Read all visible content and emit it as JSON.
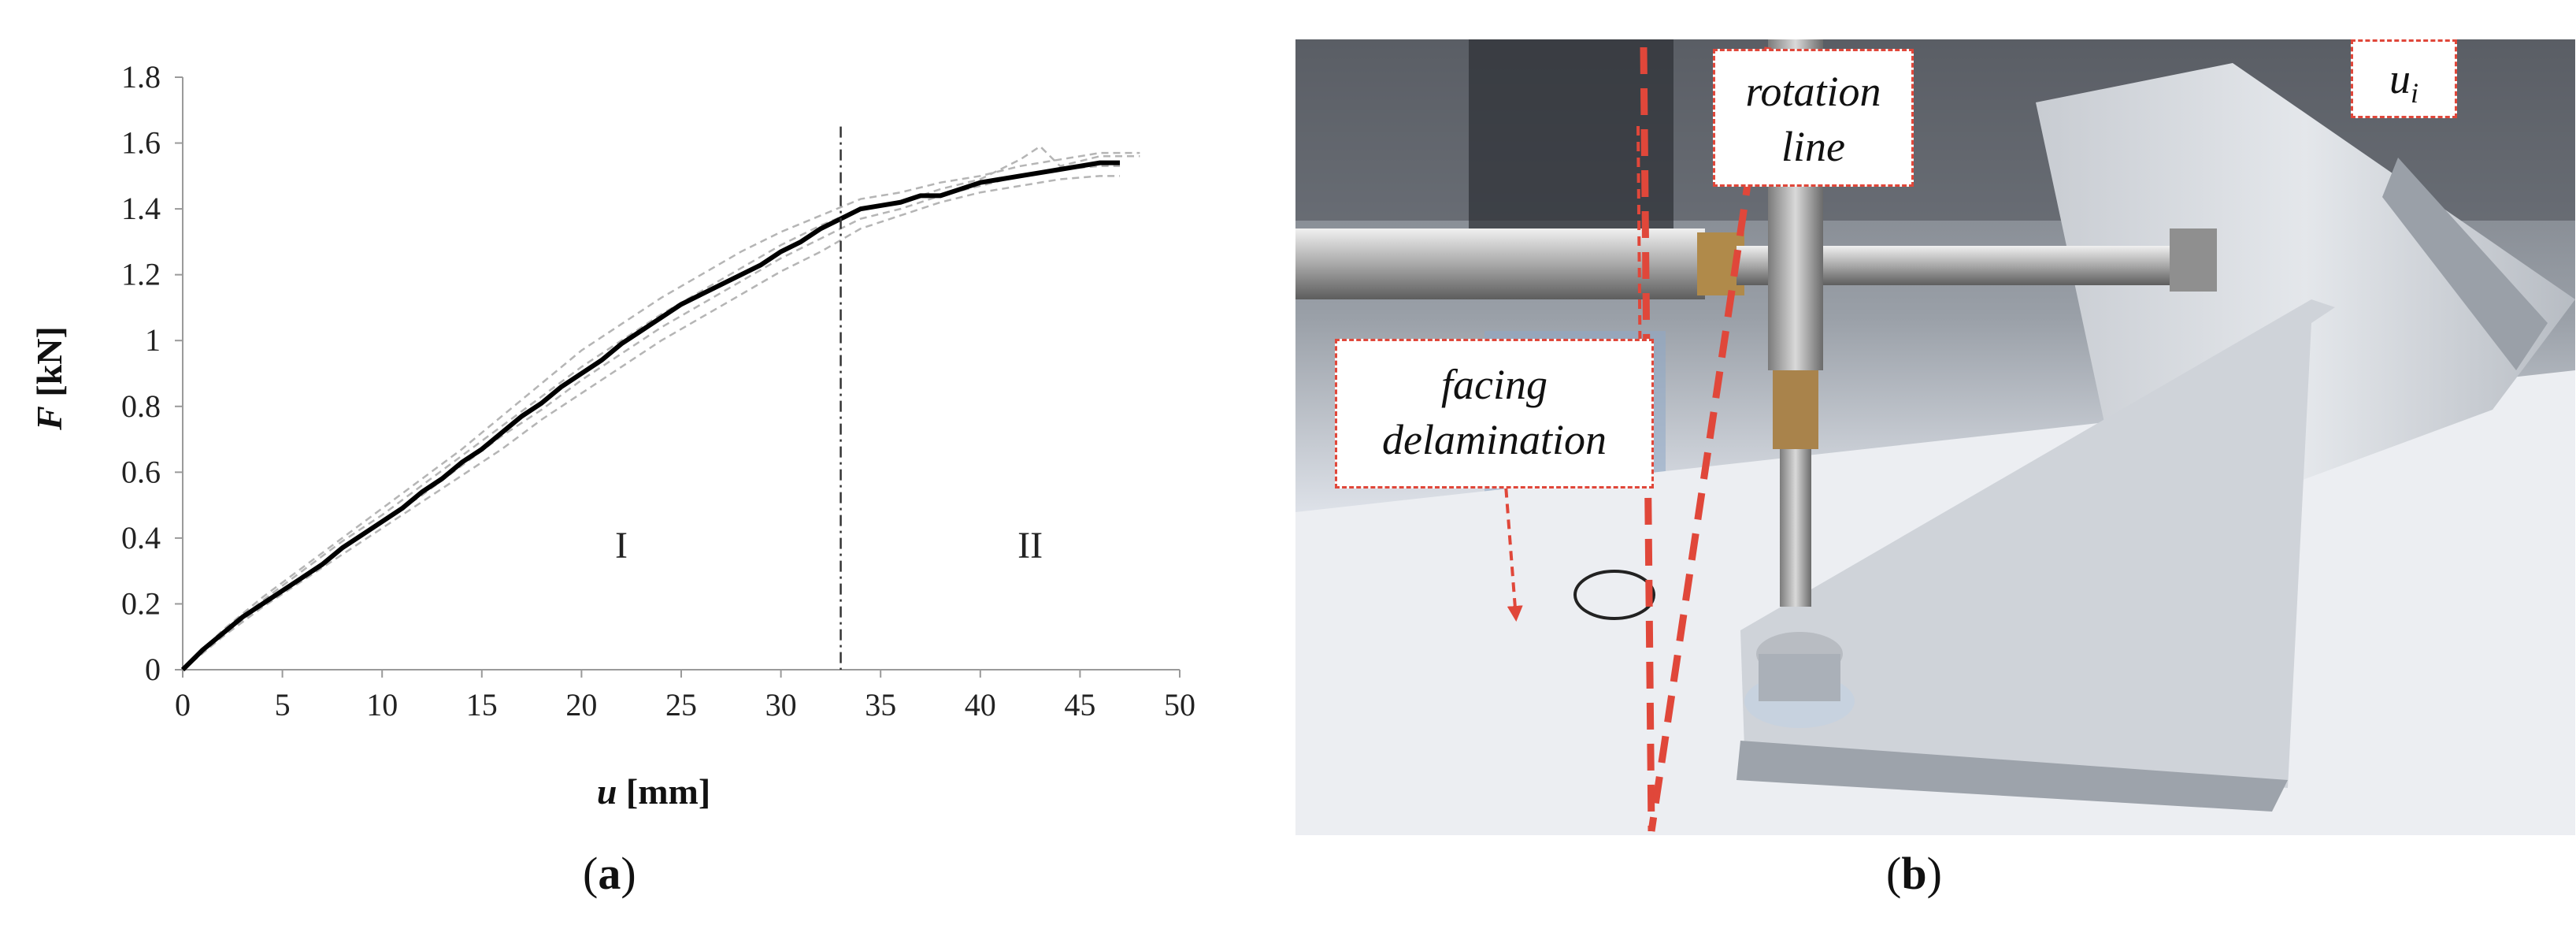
{
  "chart_data": {
    "type": "line",
    "title": "",
    "xlabel_var": "u",
    "xlabel_unit": "[mm]",
    "ylabel_var": "F",
    "ylabel_unit": "[kN]",
    "xlim": [
      0,
      50
    ],
    "ylim": [
      0,
      1.8
    ],
    "x_ticks": [
      0,
      5,
      10,
      15,
      20,
      25,
      30,
      35,
      40,
      45,
      50
    ],
    "y_ticks": [
      0,
      0.2,
      0.4,
      0.6,
      0.8,
      1,
      1.2,
      1.4,
      1.6,
      1.8
    ],
    "y_tick_labels": [
      "0",
      "0.2",
      "0.4",
      "0.6",
      "0.8",
      "1",
      "1.2",
      "1.4",
      "1.6",
      "1.8"
    ],
    "grid": false,
    "legend": "none",
    "divider_x": 33,
    "regions": [
      {
        "label": "I",
        "x": 22,
        "y": 0.34
      },
      {
        "label": "II",
        "x": 42.5,
        "y": 0.34
      }
    ],
    "series": [
      {
        "style": "mean",
        "color": "#000000",
        "x": [
          0,
          1,
          2,
          3,
          4,
          5,
          6,
          7,
          8,
          9,
          10,
          11,
          12,
          13,
          14,
          15,
          16,
          17,
          18,
          19,
          20,
          21,
          22,
          23,
          24,
          25,
          26,
          27,
          28,
          29,
          30,
          31,
          32,
          33,
          34,
          35,
          36,
          37,
          38,
          39,
          40,
          41,
          42,
          43,
          44,
          45,
          46,
          47
        ],
        "y": [
          0,
          0.06,
          0.11,
          0.16,
          0.2,
          0.24,
          0.28,
          0.32,
          0.37,
          0.41,
          0.45,
          0.49,
          0.54,
          0.58,
          0.63,
          0.67,
          0.72,
          0.77,
          0.81,
          0.86,
          0.9,
          0.94,
          0.99,
          1.03,
          1.07,
          1.11,
          1.14,
          1.17,
          1.2,
          1.23,
          1.27,
          1.3,
          1.34,
          1.37,
          1.4,
          1.41,
          1.42,
          1.44,
          1.44,
          1.46,
          1.48,
          1.49,
          1.5,
          1.51,
          1.52,
          1.53,
          1.54,
          1.54
        ]
      },
      {
        "style": "sample",
        "color": "#b5b5b5",
        "x": [
          0,
          2,
          4,
          6,
          8,
          10,
          12,
          14,
          16,
          18,
          20,
          22,
          24,
          26,
          28,
          30,
          32,
          34,
          36,
          38,
          40,
          42,
          44,
          46,
          48
        ],
        "y": [
          0,
          0.12,
          0.22,
          0.31,
          0.4,
          0.49,
          0.58,
          0.67,
          0.77,
          0.87,
          0.97,
          1.05,
          1.13,
          1.2,
          1.27,
          1.33,
          1.38,
          1.43,
          1.45,
          1.48,
          1.5,
          1.53,
          1.55,
          1.57,
          1.57
        ]
      },
      {
        "style": "sample",
        "color": "#b5b5b5",
        "x": [
          0,
          2,
          4,
          6,
          8,
          10,
          12,
          14,
          16,
          18,
          20,
          22,
          24,
          26,
          28,
          30,
          32,
          34,
          36,
          38,
          40,
          42,
          44,
          46,
          47
        ],
        "y": [
          0,
          0.1,
          0.19,
          0.27,
          0.35,
          0.43,
          0.51,
          0.59,
          0.67,
          0.76,
          0.84,
          0.92,
          1.0,
          1.07,
          1.14,
          1.21,
          1.27,
          1.34,
          1.38,
          1.42,
          1.45,
          1.47,
          1.49,
          1.5,
          1.5
        ]
      },
      {
        "style": "sample",
        "color": "#b5b5b5",
        "x": [
          0,
          2,
          4,
          6,
          8,
          10,
          12,
          14,
          16,
          18,
          20,
          22,
          24,
          26,
          28,
          30,
          32,
          34,
          36,
          38,
          40,
          42,
          43,
          44,
          46,
          48
        ],
        "y": [
          0,
          0.11,
          0.21,
          0.3,
          0.39,
          0.47,
          0.56,
          0.65,
          0.74,
          0.83,
          0.92,
          1.0,
          1.08,
          1.15,
          1.22,
          1.29,
          1.35,
          1.4,
          1.42,
          1.46,
          1.49,
          1.55,
          1.59,
          1.53,
          1.56,
          1.56
        ]
      },
      {
        "style": "sample",
        "color": "#b5b5b5",
        "x": [
          0,
          2,
          4,
          6,
          8,
          10,
          12,
          14,
          16,
          18,
          20,
          22,
          24,
          26,
          28,
          30,
          32,
          34,
          36,
          38,
          40,
          42,
          44,
          46,
          47
        ],
        "y": [
          0,
          0.1,
          0.2,
          0.28,
          0.37,
          0.45,
          0.53,
          0.62,
          0.71,
          0.79,
          0.88,
          0.96,
          1.04,
          1.11,
          1.18,
          1.25,
          1.31,
          1.37,
          1.4,
          1.44,
          1.47,
          1.5,
          1.52,
          1.53,
          1.53
        ]
      }
    ]
  },
  "captions": {
    "a": "a",
    "b": "b"
  },
  "photo_b": {
    "labels": {
      "rotation_line_1": "rotation",
      "rotation_line_2": "line",
      "facing_delamination_1": "facing",
      "facing_delamination_2": "delamination",
      "ui_var": "u",
      "ui_sub": "i"
    },
    "colors": {
      "annotation_red": "#e0473a",
      "steel_light": "#c9c9c9",
      "steel_dark": "#6d6d6d",
      "table": "#eceef2"
    }
  }
}
